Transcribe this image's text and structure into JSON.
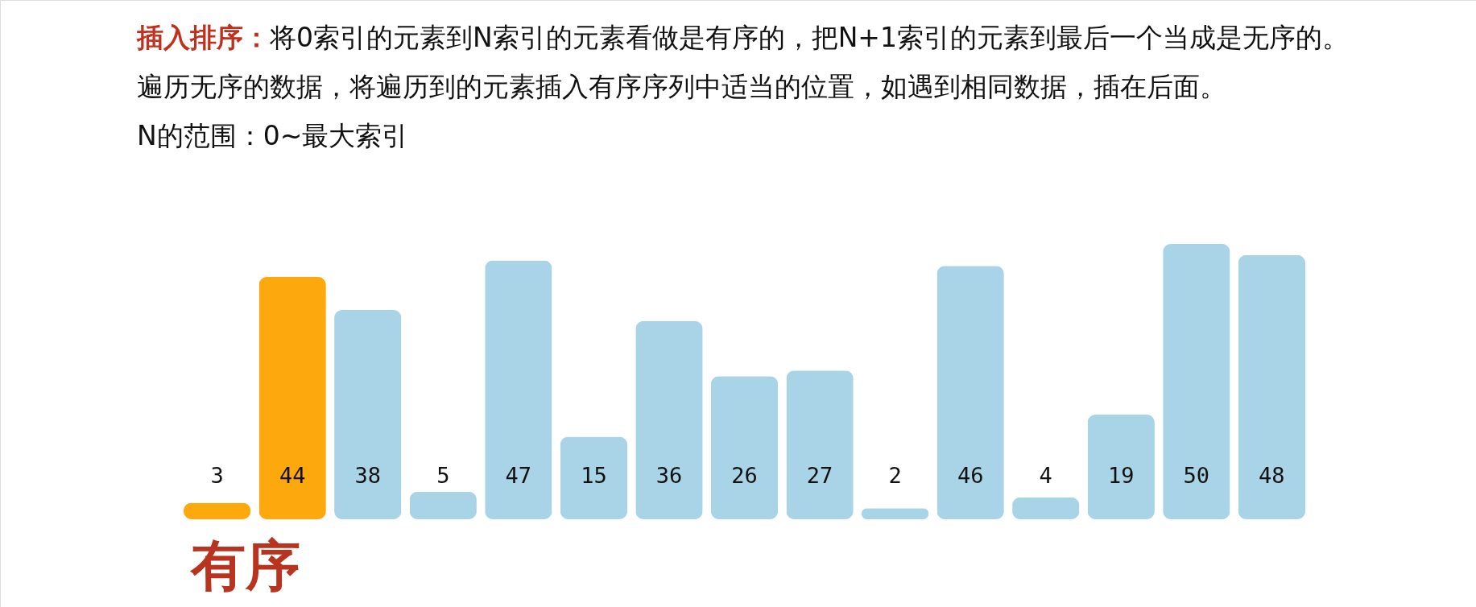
{
  "chart_data": {
    "type": "bar",
    "title": "插入排序：",
    "subtitle": [
      "将0索引的元素到N索引的元素看做是有序的，把N+1索引的元素到最后一个当成是无序的。",
      "遍历无序的数据，将遍历到的元素插入有序序列中适当的位置，如遇到相同数据，插在后面。",
      "N的范围：0~最大索引"
    ],
    "categories": [
      null,
      null,
      null,
      null,
      null,
      null,
      null,
      null,
      null,
      null,
      null,
      null,
      null,
      null,
      null
    ],
    "values": [
      3,
      44,
      38,
      5,
      47,
      15,
      36,
      26,
      27,
      2,
      46,
      4,
      19,
      50,
      48
    ],
    "colors": [
      "#fda80d",
      "#fda80d",
      "#a9d3e6",
      "#a9d3e6",
      "#a9d3e6",
      "#a9d3e6",
      "#a9d3e6",
      "#a9d3e6",
      "#a9d3e6",
      "#a9d3e6",
      "#a9d3e6",
      "#a9d3e6",
      "#a9d3e6",
      "#a9d3e6",
      "#a9d3e6"
    ],
    "data_labels": true,
    "annotations": [
      "有序"
    ]
  }
}
